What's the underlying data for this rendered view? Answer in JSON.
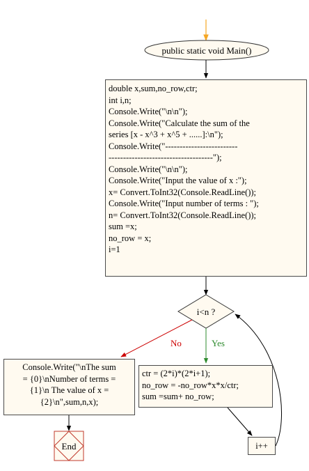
{
  "flowchart": {
    "start_label": "public static void Main()",
    "init_lines": [
      "double x,sum,no_row,ctr;",
      "int i,n;",
      "Console.Write(\"\\n\\n\");",
      "Console.Write(\"Calculate the sum of the",
      "series [x - x^3 + x^5 + ......]:\\n\");",
      "Console.Write(\"-------------------------",
      "------------------------------------\");",
      "Console.Write(\"\\n\\n\");",
      "Console.Write(\"Input the value of x :\");",
      "x= Convert.ToInt32(Console.ReadLine());",
      "Console.Write(\"Input number of terms : \");",
      "n= Convert.ToInt32(Console.ReadLine());",
      "sum =x;",
      "no_row = x;",
      "i=1"
    ],
    "condition_label": "i<n ?",
    "no_label": "No",
    "yes_label": "Yes",
    "loop_lines": [
      "ctr = (2*i)*(2*i+1);",
      "no_row = -no_row*x*x/ctr;",
      "sum =sum+ no_row;"
    ],
    "output_lines": [
      "Console.Write(\"\\nThe sum",
      "= {0}\\nNumber of terms =",
      "{1}\\n The value of x =",
      "{2}\\n\",sum,n,x);"
    ],
    "increment_label": "i++",
    "end_label": "End"
  },
  "colors": {
    "start_arrow": "#f5a623",
    "arrow": "#000000",
    "no_branch": "#cc0000",
    "yes_branch": "#2e8b2e",
    "box_fill": "#fffaf0",
    "end_border": "#c0392b"
  }
}
